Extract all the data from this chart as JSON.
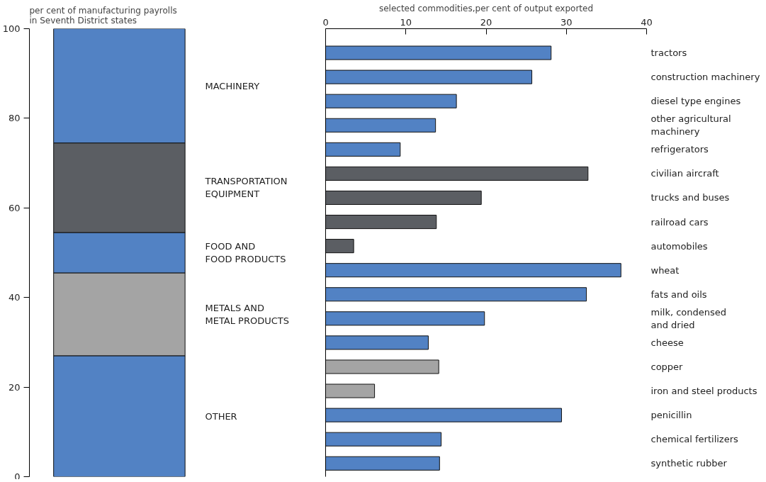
{
  "chart_data": [
    {
      "type": "bar",
      "stacked": true,
      "ylabel": "per cent of manufacturing payrolls\nin Seventh District states",
      "categories": [
        null
      ],
      "ylim": [
        0,
        100
      ],
      "yticks": [
        0,
        20,
        40,
        60,
        80,
        100
      ],
      "tick_labels": "y",
      "grid": false,
      "series": [
        {
          "name": "OTHER",
          "color": "#5282c4",
          "values": [
            27
          ]
        },
        {
          "name": "METALS AND\nMETAL PRODUCTS",
          "color": "#a4a4a4",
          "values": [
            18.5
          ]
        },
        {
          "name": "FOOD AND\nFOOD PRODUCTS",
          "color": "#5282c4",
          "values": [
            9
          ]
        },
        {
          "name": "TRANSPORTATION\nEQUIPMENT",
          "color": "#5b5e63",
          "values": [
            20
          ]
        },
        {
          "name": "MACHINERY",
          "color": "#5282c4",
          "values": [
            25.5
          ]
        }
      ]
    },
    {
      "type": "bar",
      "orientation": "horizontal",
      "xlabel": "selected commodities,per cent of output exported",
      "xlim": [
        0,
        40
      ],
      "xticks": [
        0,
        10,
        20,
        30,
        40
      ],
      "grid": false,
      "categories": [
        "tractors",
        "construction machinery",
        "diesel type engines",
        "other agricultural\nmachinery",
        "refrigerators",
        "civilian aircraft",
        "trucks and buses",
        "railroad cars",
        "automobiles",
        "wheat",
        "fats and oils",
        "milk, condensed\nand dried",
        "cheese",
        "copper",
        "iron and steel products",
        "penicillin",
        "chemical fertilizers",
        "synthetic rubber"
      ],
      "values": [
        28.1,
        25.7,
        16.3,
        13.7,
        9.3,
        32.7,
        19.4,
        13.8,
        3.5,
        36.8,
        32.5,
        19.8,
        12.8,
        14.1,
        6.1,
        29.4,
        14.4,
        14.2
      ],
      "colors": [
        "#5282c4",
        "#5282c4",
        "#5282c4",
        "#5282c4",
        "#5282c4",
        "#5b5e63",
        "#5b5e63",
        "#5b5e63",
        "#5b5e63",
        "#5282c4",
        "#5282c4",
        "#5282c4",
        "#5282c4",
        "#a4a4a4",
        "#a4a4a4",
        "#5282c4",
        "#5282c4",
        "#5282c4"
      ]
    }
  ]
}
